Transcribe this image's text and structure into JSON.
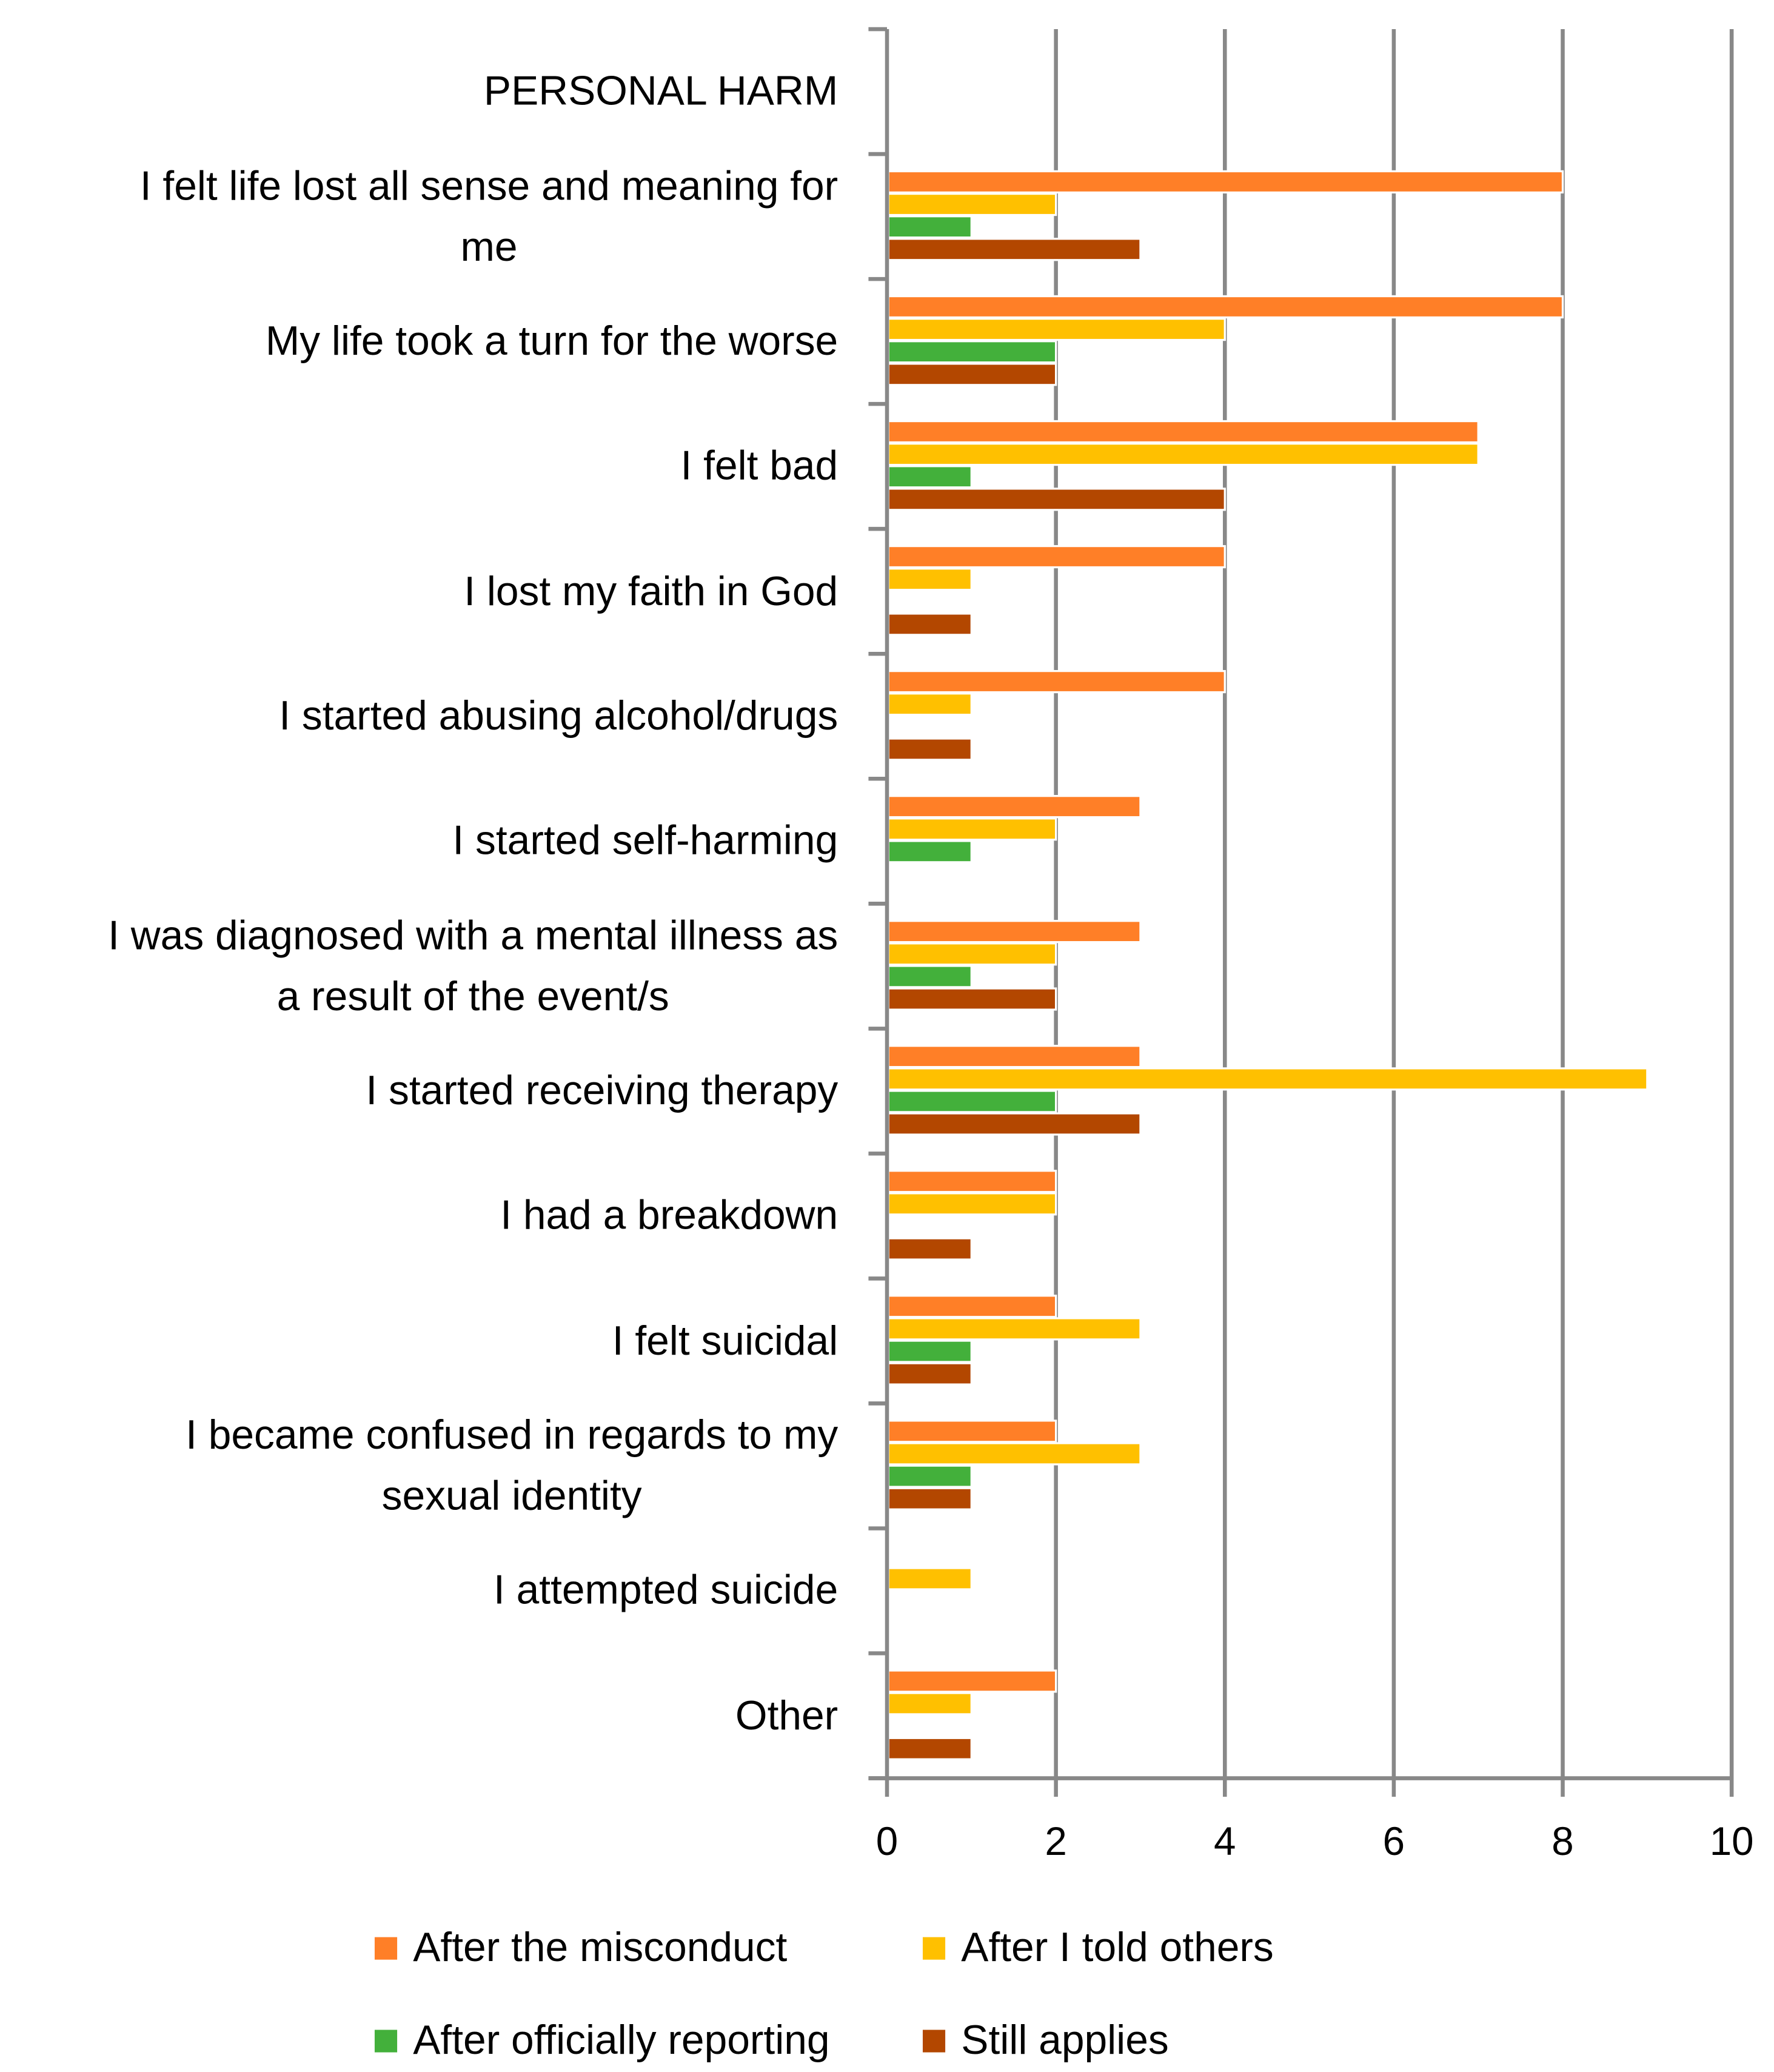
{
  "chart_data": {
    "type": "bar",
    "orientation": "horizontal",
    "title": "",
    "xlabel": "",
    "ylabel": "",
    "xlim": [
      0,
      10
    ],
    "x_ticks": [
      "0",
      "2",
      "4",
      "6",
      "8",
      "10"
    ],
    "grid": true,
    "legend_position": "bottom",
    "categories": [
      "PERSONAL HARM",
      "I felt life lost all sense and meaning for\nme",
      "My life took a turn for the worse",
      "I felt bad",
      "I lost my faith in God",
      "I started abusing alcohol/drugs",
      "I started self-harming",
      "I was diagnosed with a mental illness as\na result of the event/s",
      "I started receiving therapy",
      "I had a breakdown",
      "I felt suicidal",
      "I became confused in regards to my\nsexual identity",
      "I attempted suicide",
      "Other"
    ],
    "series": [
      {
        "name": "After the misconduct",
        "color": "#FF7F27",
        "values": [
          0,
          8,
          8,
          7,
          4,
          4,
          3,
          3,
          3,
          2,
          2,
          2,
          0,
          2
        ]
      },
      {
        "name": "After I told others",
        "color": "#FFC000",
        "values": [
          0,
          2,
          4,
          7,
          1,
          1,
          2,
          2,
          9,
          2,
          3,
          3,
          1,
          1
        ]
      },
      {
        "name": "After officially reporting",
        "color": "#43B03B",
        "values": [
          0,
          1,
          2,
          1,
          0,
          0,
          1,
          1,
          2,
          0,
          1,
          1,
          0,
          0
        ]
      },
      {
        "name": "Still applies",
        "color": "#B34700",
        "values": [
          0,
          3,
          2,
          4,
          1,
          1,
          0,
          2,
          3,
          1,
          1,
          1,
          0,
          1
        ]
      }
    ]
  }
}
